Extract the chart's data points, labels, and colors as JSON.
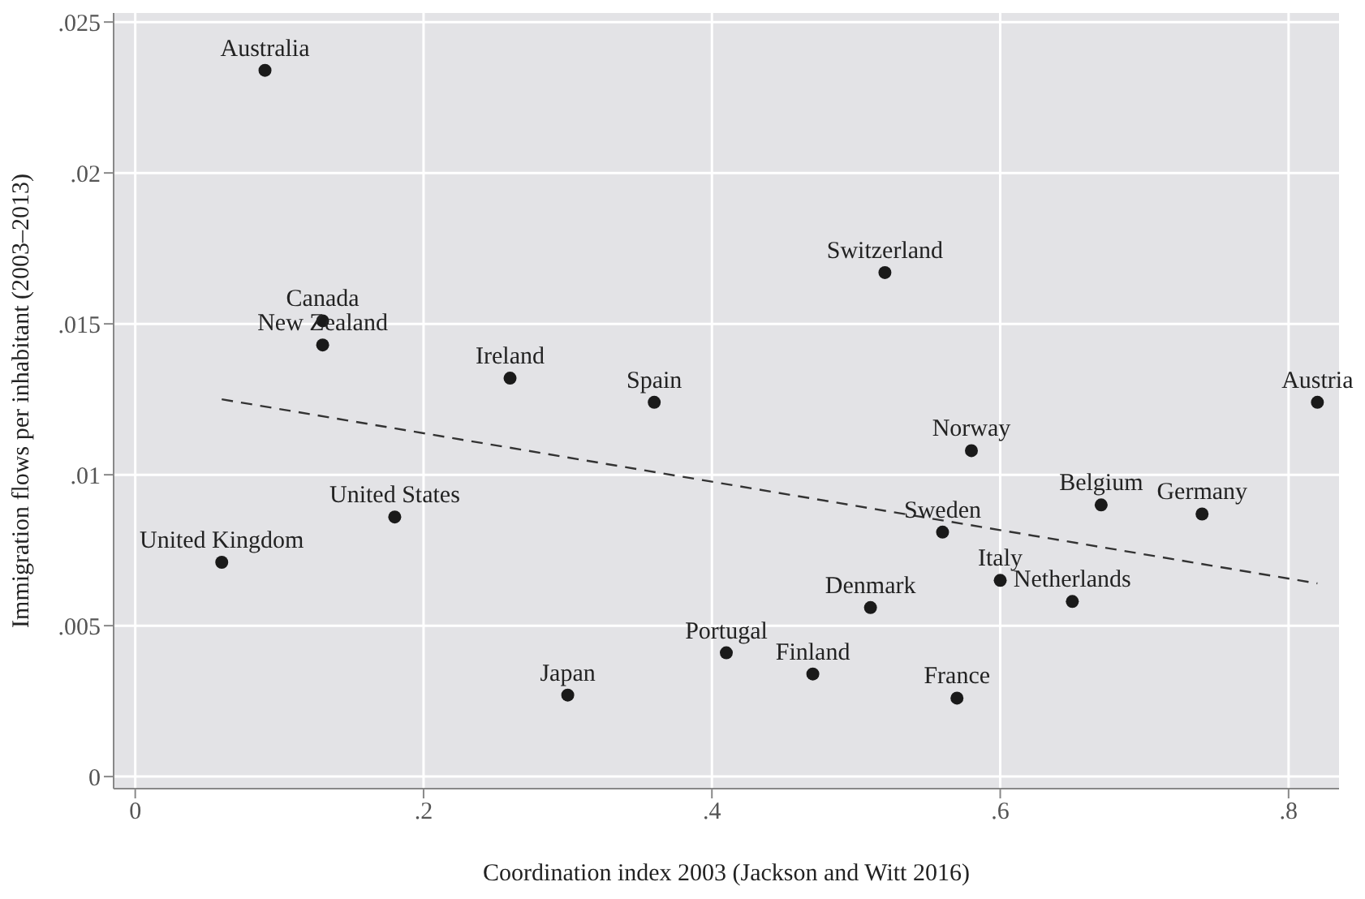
{
  "chart_data": {
    "type": "scatter",
    "xlabel": "Coordination index 2003 (Jackson and Witt 2016)",
    "ylabel": "Immigration flows per inhabitant (2003–2013)",
    "xlim": [
      -0.015,
      0.835
    ],
    "ylim": [
      -0.0004,
      0.0253
    ],
    "xticks": [
      0,
      {
        "value": 0.2,
        "label": ".2"
      },
      {
        "value": 0.4,
        "label": ".4"
      },
      {
        "value": 0.6,
        "label": ".6"
      },
      {
        "value": 0.8,
        "label": ".8"
      }
    ],
    "yticks": [
      0,
      {
        "value": 0.005,
        "label": ".005"
      },
      {
        "value": 0.01,
        "label": ".01"
      },
      {
        "value": 0.015,
        "label": ".015"
      },
      {
        "value": 0.02,
        "label": ".02"
      },
      {
        "value": 0.025,
        "label": ".025"
      }
    ],
    "grid": true,
    "legend": false,
    "series": [
      {
        "color": "#1a1a1a",
        "marker": "circle",
        "x": [
          0.09,
          0.13,
          0.13,
          0.18,
          0.06,
          0.26,
          0.36,
          0.52,
          0.82,
          0.58,
          0.67,
          0.74,
          0.56,
          0.6,
          0.65,
          0.51,
          0.41,
          0.47,
          0.3,
          0.57
        ],
        "values": [
          0.0234,
          0.0151,
          0.0143,
          0.0086,
          0.0071,
          0.0132,
          0.0124,
          0.0167,
          0.0124,
          0.0108,
          0.009,
          0.0087,
          0.0081,
          0.0065,
          0.0058,
          0.0056,
          0.0041,
          0.0034,
          0.0027,
          0.0026
        ]
      },
      {
        "type": "line",
        "color": "#333333",
        "marker": "none",
        "line_style": "dashed",
        "x": [
          0.06,
          0.82
        ],
        "values": [
          0.0125,
          0.0064
        ]
      }
    ],
    "annotations": [
      {
        "text": "Australia",
        "x": 0.09,
        "y": 0.0234
      },
      {
        "text": "Canada",
        "x": 0.13,
        "y": 0.0151
      },
      {
        "text": "New Zealand",
        "x": 0.13,
        "y": 0.0143
      },
      {
        "text": "United States",
        "x": 0.18,
        "y": 0.0086
      },
      {
        "text": "United Kingdom",
        "x": 0.06,
        "y": 0.0071
      },
      {
        "text": "Ireland",
        "x": 0.26,
        "y": 0.0132
      },
      {
        "text": "Spain",
        "x": 0.36,
        "y": 0.0124
      },
      {
        "text": "Switzerland",
        "x": 0.52,
        "y": 0.0167
      },
      {
        "text": "Austria",
        "x": 0.82,
        "y": 0.0124
      },
      {
        "text": "Norway",
        "x": 0.58,
        "y": 0.0108
      },
      {
        "text": "Belgium",
        "x": 0.67,
        "y": 0.009
      },
      {
        "text": "Germany",
        "x": 0.74,
        "y": 0.0087
      },
      {
        "text": "Sweden",
        "x": 0.56,
        "y": 0.0081
      },
      {
        "text": "Italy",
        "x": 0.6,
        "y": 0.0065
      },
      {
        "text": "Netherlands",
        "x": 0.65,
        "y": 0.0058
      },
      {
        "text": "Denmark",
        "x": 0.51,
        "y": 0.0056
      },
      {
        "text": "Portugal",
        "x": 0.41,
        "y": 0.0041
      },
      {
        "text": "Finland",
        "x": 0.47,
        "y": 0.0034
      },
      {
        "text": "Japan",
        "x": 0.3,
        "y": 0.0027
      },
      {
        "text": "France",
        "x": 0.57,
        "y": 0.0026
      }
    ]
  }
}
